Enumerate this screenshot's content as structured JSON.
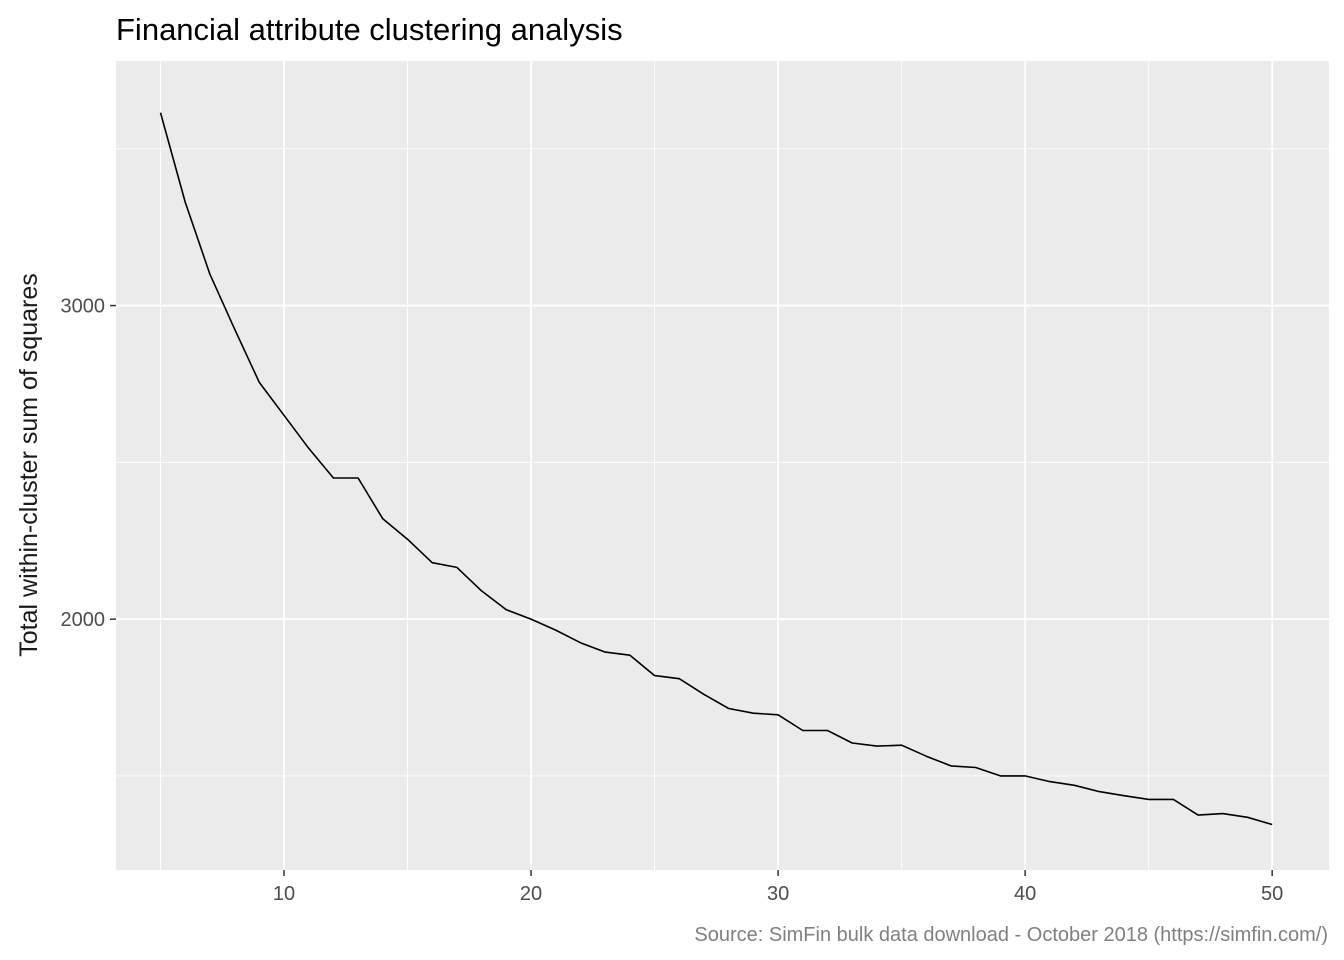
{
  "chart_data": {
    "type": "line",
    "title": "Financial attribute clustering analysis",
    "xlabel": "",
    "ylabel": "Total within-cluster sum of squares",
    "caption": "Source: SimFin bulk data download - October 2018 (https://simfin.com/)",
    "xlim": [
      3.2,
      52.3
    ],
    "ylim": [
      1200,
      3780
    ],
    "x_ticks": [
      10,
      20,
      30,
      40,
      50
    ],
    "x_tick_labels": [
      "10",
      "20",
      "30",
      "40",
      "50"
    ],
    "y_ticks": [
      2000,
      3000
    ],
    "y_tick_labels": [
      "2000",
      "3000"
    ],
    "x_minor_ticks": [
      5,
      15,
      25,
      35,
      45
    ],
    "y_minor_ticks": [
      1500,
      2500,
      3500
    ],
    "grid": true,
    "legend": "none",
    "colors": {
      "panel": "#ebebeb",
      "grid": "#ffffff",
      "line": "#000000"
    },
    "series": [
      {
        "x": [
          5,
          6,
          7,
          8,
          9,
          10,
          11,
          12,
          13,
          14,
          15,
          16,
          17,
          18,
          19,
          20,
          21,
          22,
          23,
          24,
          25,
          26,
          27,
          28,
          29,
          30,
          31,
          32,
          33,
          34,
          35,
          36,
          37,
          38,
          39,
          40,
          41,
          42,
          43,
          44,
          45,
          46,
          47,
          48,
          49,
          50
        ],
        "values": [
          3615,
          3330,
          3100,
          2925,
          2755,
          2650,
          2545,
          2450,
          2450,
          2320,
          2255,
          2180,
          2165,
          2090,
          2030,
          2000,
          1965,
          1925,
          1895,
          1885,
          1820,
          1810,
          1760,
          1715,
          1700,
          1695,
          1645,
          1645,
          1605,
          1595,
          1598,
          1563,
          1532,
          1527,
          1500,
          1500,
          1482,
          1470,
          1450,
          1437,
          1425,
          1425,
          1375,
          1380,
          1368,
          1345
        ]
      }
    ]
  }
}
